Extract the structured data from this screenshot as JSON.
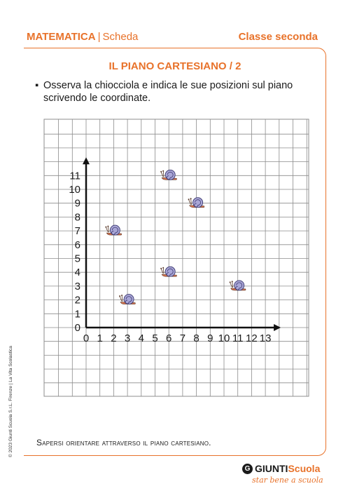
{
  "header": {
    "subject": "MATEMATICA",
    "separator": "|",
    "type": "Scheda",
    "grade": "Classe seconda"
  },
  "title": "IL PIANO CARTESIANO / 2",
  "instruction": {
    "bullet": "▪",
    "text": "Osserva la chiocciola e indica le sue posizioni sul piano scrivendo le coordinate."
  },
  "chart_data": {
    "type": "scatter",
    "x_ticks": [
      "0",
      "1",
      "2",
      "3",
      "4",
      "5",
      "6",
      "7",
      "8",
      "9",
      "10",
      "11",
      "12",
      "13"
    ],
    "y_ticks": [
      "0",
      "1",
      "2",
      "3",
      "4",
      "5",
      "6",
      "7",
      "8",
      "9",
      "10",
      "11"
    ],
    "xlim": [
      0,
      13
    ],
    "ylim": [
      0,
      11
    ],
    "grid": true,
    "marker_icon": "snail-icon",
    "points": [
      {
        "x": 2,
        "y": 7
      },
      {
        "x": 3,
        "y": 2
      },
      {
        "x": 6,
        "y": 11
      },
      {
        "x": 6,
        "y": 4
      },
      {
        "x": 8,
        "y": 9
      },
      {
        "x": 11,
        "y": 3
      }
    ]
  },
  "footer": "Sapersi orientare attraverso il piano cartesiano.",
  "copyright": "© 2023 Giunti Scuola S.r.L. Firenze | La Vita Scolastica",
  "logo": {
    "brand": "GIUNTI",
    "brand_suffix": "Scuola",
    "tagline": "star bene a scuola"
  },
  "colors": {
    "accent": "#e8722a",
    "grid": "#8c8c8c",
    "snail_shell": "#a9a6d6",
    "snail_body": "#d9734e"
  }
}
